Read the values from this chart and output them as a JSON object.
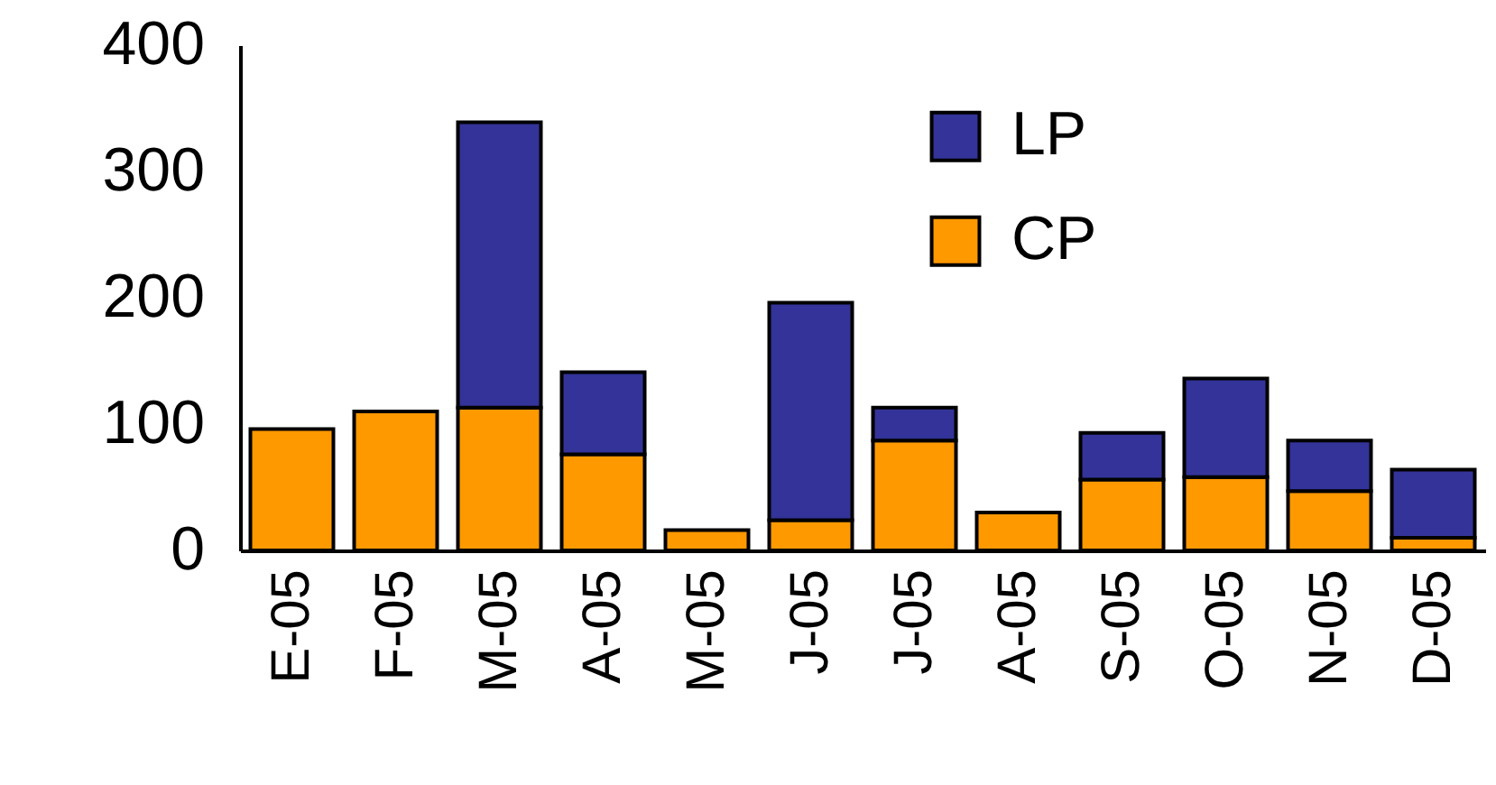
{
  "chart_data": {
    "type": "bar",
    "stacked": true,
    "categories": [
      "E-05",
      "F-05",
      "M-05",
      "A-05",
      "M-05",
      "J-05",
      "J-05",
      "A-05",
      "S-05",
      "O-05",
      "N-05",
      "D-05"
    ],
    "series": [
      {
        "name": "CP",
        "color": "#ff9900",
        "values": [
          96,
          110,
          113,
          76,
          16,
          24,
          87,
          30,
          56,
          58,
          47,
          10
        ]
      },
      {
        "name": "LP",
        "color": "#333399",
        "values": [
          null,
          null,
          226,
          65,
          null,
          172,
          26,
          null,
          37,
          78,
          40,
          54
        ]
      }
    ],
    "ylim": [
      0,
      400
    ],
    "yticks": [
      0,
      100,
      200,
      300,
      400
    ],
    "legend": "top right"
  }
}
